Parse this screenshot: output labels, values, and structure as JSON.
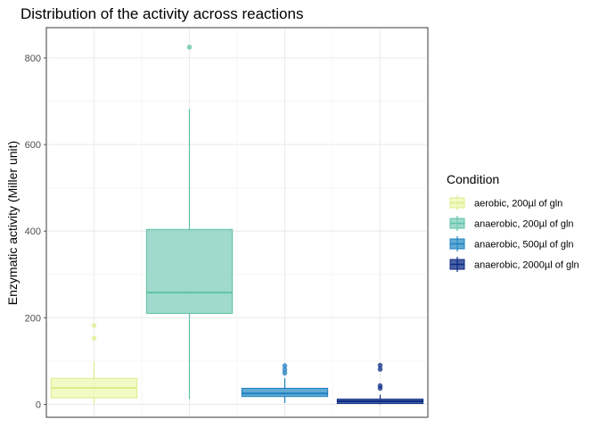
{
  "chart_data": {
    "type": "boxplot",
    "title": "Distribution of the activity across reactions",
    "xlabel": "",
    "ylabel": "Enzymatic activity (Miller unit)",
    "ylim": [
      -30,
      870
    ],
    "yticks": [
      0,
      200,
      400,
      600,
      800
    ],
    "grid": true,
    "legend_position": "right",
    "legend_title": "Condition",
    "series": [
      {
        "name": "aerobic, 200µl of gln",
        "fill": "#edf8b1",
        "stroke": "#d9ef8b",
        "min": 0,
        "q1": 15,
        "median": 38,
        "q3": 60,
        "max": 97,
        "outliers": [
          153,
          182
        ]
      },
      {
        "name": "anaerobic, 200µl of gln",
        "fill": "#7fcdbb",
        "stroke": "#5fc3a6",
        "min": 12,
        "q1": 210,
        "median": 258,
        "q3": 404,
        "max": 682,
        "outliers": [
          825
        ]
      },
      {
        "name": "anaerobic, 500µl of gln",
        "fill": "#2c8fc6",
        "stroke": "#1d7fc0",
        "min": 3,
        "q1": 18,
        "median": 25,
        "q3": 37,
        "max": 60,
        "outliers": [
          72,
          80,
          89
        ]
      },
      {
        "name": "anaerobic, 2000µl of gln",
        "fill": "#0c2c84",
        "stroke": "#0c2c84",
        "min": 0,
        "q1": 2,
        "median": 7,
        "q3": 12,
        "max": 22,
        "outliers": [
          37,
          43,
          81,
          90
        ]
      }
    ]
  }
}
